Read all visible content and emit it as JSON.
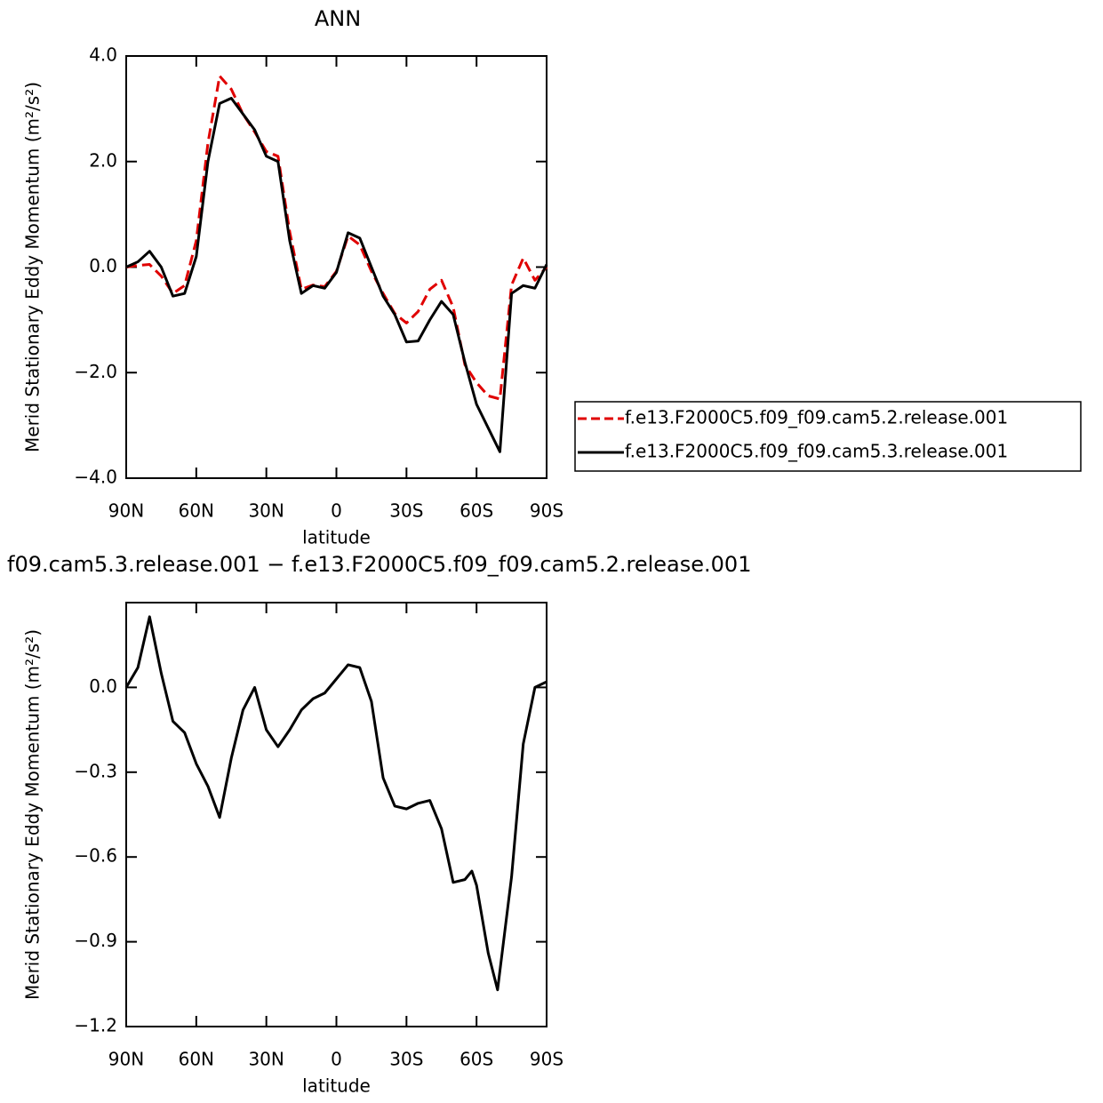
{
  "chart_data": [
    {
      "type": "line",
      "title": "ANN",
      "xlabel": "latitude",
      "ylabel": "Merid Stationary Eddy Momentum (m²/s²)",
      "x": [
        90,
        85,
        80,
        75,
        70,
        65,
        60,
        55,
        50,
        45,
        40,
        35,
        30,
        25,
        20,
        15,
        10,
        5,
        0,
        -5,
        -10,
        -15,
        -20,
        -25,
        -30,
        -35,
        -40,
        -45,
        -50,
        -55,
        -60,
        -65,
        -70,
        -75,
        -80,
        -85,
        -90
      ],
      "xlim": [
        90,
        -90
      ],
      "xticks": [
        {
          "value": 90,
          "label": "90N"
        },
        {
          "value": 60,
          "label": "60N"
        },
        {
          "value": 30,
          "label": "30N"
        },
        0,
        {
          "value": -30,
          "label": "30S"
        },
        {
          "value": -60,
          "label": "60S"
        },
        {
          "value": -90,
          "label": "90S"
        }
      ],
      "ylim": [
        -4,
        4
      ],
      "yticks": [
        {
          "value": -4,
          "label": "−4.0"
        },
        {
          "value": -2,
          "label": "−2.0"
        },
        {
          "value": 0,
          "label": "0.0"
        },
        {
          "value": 2,
          "label": "2.0"
        },
        {
          "value": 4,
          "label": "4.0"
        }
      ],
      "series": [
        {
          "name": "f.e13.F2000C5.f09_f09.cam5.2.release.001",
          "color": "#e00000",
          "line_style": "dashed",
          "values": [
            0.0,
            0.03,
            0.05,
            -0.17,
            -0.5,
            -0.35,
            0.5,
            2.35,
            3.62,
            3.37,
            2.9,
            2.56,
            2.19,
            2.1,
            0.67,
            -0.42,
            -0.34,
            -0.37,
            -0.08,
            0.59,
            0.42,
            -0.08,
            -0.5,
            -0.88,
            -1.06,
            -0.84,
            -0.42,
            -0.25,
            -0.76,
            -1.85,
            -2.19,
            -2.44,
            -2.5,
            -0.34,
            0.17,
            -0.25,
            0.0
          ]
        },
        {
          "name": "f.e13.F2000C5.f09_f09.cam5.3.release.001",
          "color": "#000000",
          "line_style": "solid",
          "values": [
            0.0,
            0.1,
            0.3,
            0.0,
            -0.55,
            -0.5,
            0.2,
            2.0,
            3.1,
            3.2,
            2.9,
            2.6,
            2.1,
            2.0,
            0.5,
            -0.5,
            -0.35,
            -0.4,
            -0.1,
            0.65,
            0.55,
            0.0,
            -0.55,
            -0.9,
            -1.42,
            -1.4,
            -1.0,
            -0.65,
            -0.9,
            -1.8,
            -2.6,
            -3.05,
            -3.5,
            -0.5,
            -0.35,
            -0.4,
            0.05
          ]
        }
      ]
    },
    {
      "type": "line",
      "title": "f09.cam5.3.release.001 − f.e13.F2000C5.f09_f09.cam5.2.release.001",
      "xlabel": "latitude",
      "ylabel": "Merid Stationary Eddy Momentum (m²/s²)",
      "x": [
        90,
        85,
        80,
        75,
        70,
        65,
        60,
        55,
        50,
        45,
        40,
        35,
        30,
        25,
        20,
        15,
        10,
        5,
        0,
        -5,
        -10,
        -15,
        -20,
        -25,
        -30,
        -35,
        -40,
        -45,
        -50,
        -55,
        -58,
        -60,
        -65,
        -69,
        -75,
        -80,
        -85,
        -90
      ],
      "xlim": [
        90,
        -90
      ],
      "xticks": [
        {
          "value": 90,
          "label": "90N"
        },
        {
          "value": 60,
          "label": "60N"
        },
        {
          "value": 30,
          "label": "30N"
        },
        0,
        {
          "value": -30,
          "label": "30S"
        },
        {
          "value": -60,
          "label": "60S"
        },
        {
          "value": -90,
          "label": "90S"
        }
      ],
      "ylim": [
        -1.2,
        0.3
      ],
      "yticks": [
        {
          "value": -1.2,
          "label": "−1.2"
        },
        {
          "value": -0.9,
          "label": "−0.9"
        },
        {
          "value": -0.6,
          "label": "−0.6"
        },
        {
          "value": -0.3,
          "label": "−0.3"
        },
        {
          "value": 0,
          "label": "0.0"
        }
      ],
      "color": "#000000",
      "values": [
        0.0,
        0.07,
        0.25,
        0.05,
        -0.12,
        -0.16,
        -0.27,
        -0.35,
        -0.46,
        -0.25,
        -0.08,
        0.0,
        -0.15,
        -0.21,
        -0.15,
        -0.08,
        -0.04,
        -0.02,
        0.03,
        0.08,
        0.07,
        -0.05,
        -0.32,
        -0.42,
        -0.43,
        -0.41,
        -0.4,
        -0.5,
        -0.69,
        -0.68,
        -0.65,
        -0.7,
        -0.94,
        -1.07,
        -0.67,
        -0.2,
        0.0,
        0.02
      ]
    }
  ]
}
